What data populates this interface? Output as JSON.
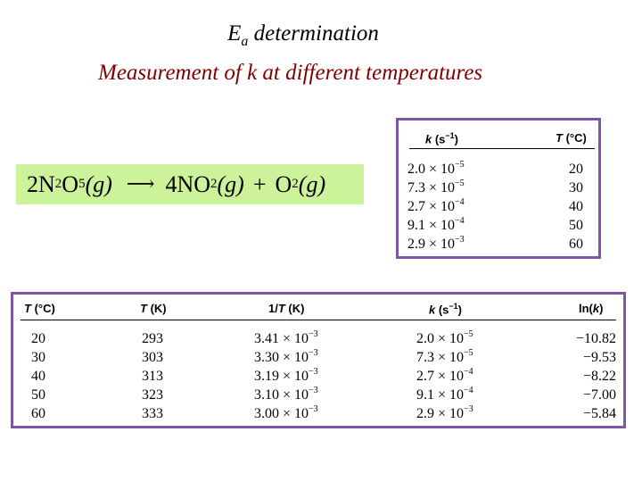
{
  "title": {
    "main": "E",
    "subscript": "a",
    "rest": " determination"
  },
  "subtitle": "Measurement of k at different temperatures",
  "equation": {
    "reactant_coef": "2N",
    "reactant_sub1": "2",
    "reactant_mid": "O",
    "reactant_sub2": "5",
    "reactant_state": "(g)",
    "product1_coef": "4NO",
    "product1_sub": "2",
    "product1_state": "(g)",
    "plus": "+",
    "product2": "O",
    "product2_sub": "2",
    "product2_state": "(g)"
  },
  "small_table": {
    "headers": {
      "k_symbol": "k",
      "k_unit": " (s",
      "k_exp": "−1",
      "k_close": ")",
      "t_symbol": "T",
      "t_unit": " (°C)"
    },
    "rows": [
      {
        "k_mant": "2.0 × 10",
        "k_exp": "−5",
        "t": "20"
      },
      {
        "k_mant": "7.3 × 10",
        "k_exp": "−5",
        "t": "30"
      },
      {
        "k_mant": "2.7 × 10",
        "k_exp": "−4",
        "t": "40"
      },
      {
        "k_mant": "9.1 × 10",
        "k_exp": "−4",
        "t": "50"
      },
      {
        "k_mant": "2.9 × 10",
        "k_exp": "−3",
        "t": "60"
      }
    ]
  },
  "big_table": {
    "headers": {
      "tc_symbol": "T",
      "tc_unit": " (°C)",
      "tk_symbol": "T",
      "tk_unit": " (K)",
      "inv_prefix": "1/",
      "inv_symbol": "T",
      "inv_unit": " (K)",
      "k_symbol": "k",
      "k_unit": " (s",
      "k_exp": "−1",
      "k_close": ")",
      "ln_prefix": "ln(",
      "ln_symbol": "k",
      "ln_close": ")"
    },
    "rows": [
      {
        "tc": "20",
        "tk": "293",
        "inv_mant": "3.41 × 10",
        "inv_exp": "−3",
        "k_mant": "2.0 × 10",
        "k_exp": "−5",
        "lnk": "−10.82"
      },
      {
        "tc": "30",
        "tk": "303",
        "inv_mant": "3.30 × 10",
        "inv_exp": "−3",
        "k_mant": "7.3 × 10",
        "k_exp": "−5",
        "lnk": "−9.53"
      },
      {
        "tc": "40",
        "tk": "313",
        "inv_mant": "3.19 × 10",
        "inv_exp": "−3",
        "k_mant": "2.7 × 10",
        "k_exp": "−4",
        "lnk": "−8.22"
      },
      {
        "tc": "50",
        "tk": "323",
        "inv_mant": "3.10 × 10",
        "inv_exp": "−3",
        "k_mant": "9.1 × 10",
        "k_exp": "−4",
        "lnk": "−7.00"
      },
      {
        "tc": "60",
        "tk": "333",
        "inv_mant": "3.00 × 10",
        "inv_exp": "−3",
        "k_mant": "2.9 × 10",
        "k_exp": "−3",
        "lnk": "−5.84"
      }
    ]
  },
  "colors": {
    "subtitle": "#800000",
    "equation_bg": "#ccf29a",
    "table_border": "#7f55a8"
  }
}
